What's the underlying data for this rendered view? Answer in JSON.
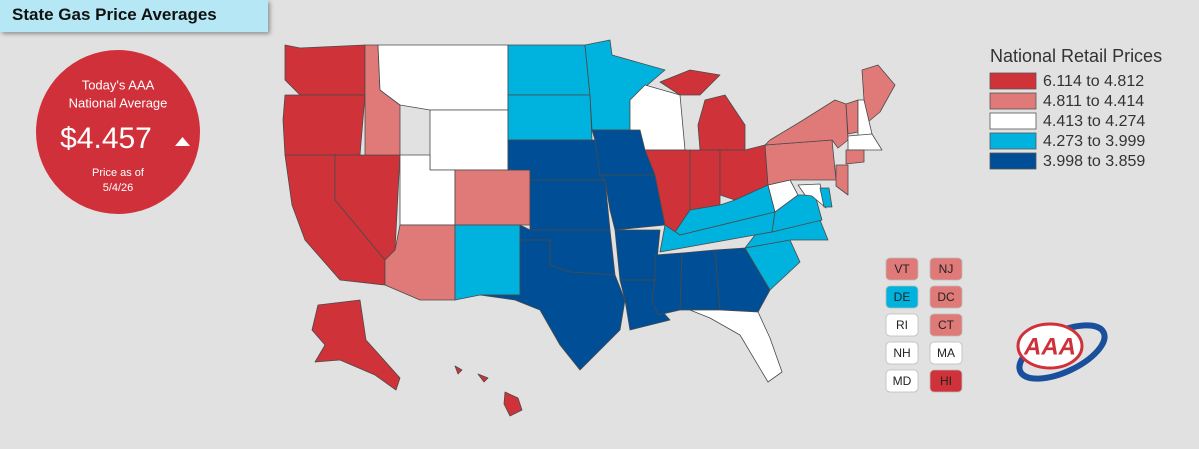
{
  "header": {
    "title": "State Gas Price Averages"
  },
  "national_average": {
    "line1": "Today's AAA",
    "line2": "National Average",
    "price": "$4.457",
    "as_of": "Price as of",
    "date": "5/4/26",
    "color": "#d0303a"
  },
  "legend": {
    "title": "National Retail Prices",
    "items": [
      {
        "label": "6.114 to 4.812",
        "color": "#cf3339"
      },
      {
        "label": "4.811 to 4.414",
        "color": "#e07a78"
      },
      {
        "label": "4.413 to 4.274",
        "color": "#ffffff"
      },
      {
        "label": "4.273 to 3.999",
        "color": "#00b3de"
      },
      {
        "label": "3.998 to 3.859",
        "color": "#004e95"
      }
    ]
  },
  "small_states": [
    {
      "label": "VT",
      "tier": 1
    },
    {
      "label": "NJ",
      "tier": 1
    },
    {
      "label": "DE",
      "tier": 3
    },
    {
      "label": "DC",
      "tier": 1
    },
    {
      "label": "RI",
      "tier": 2
    },
    {
      "label": "CT",
      "tier": 1
    },
    {
      "label": "NH",
      "tier": 2
    },
    {
      "label": "MA",
      "tier": 2
    },
    {
      "label": "MD",
      "tier": 2
    },
    {
      "label": "HI",
      "tier": 0
    }
  ],
  "logo": {
    "text": "AAA"
  }
}
